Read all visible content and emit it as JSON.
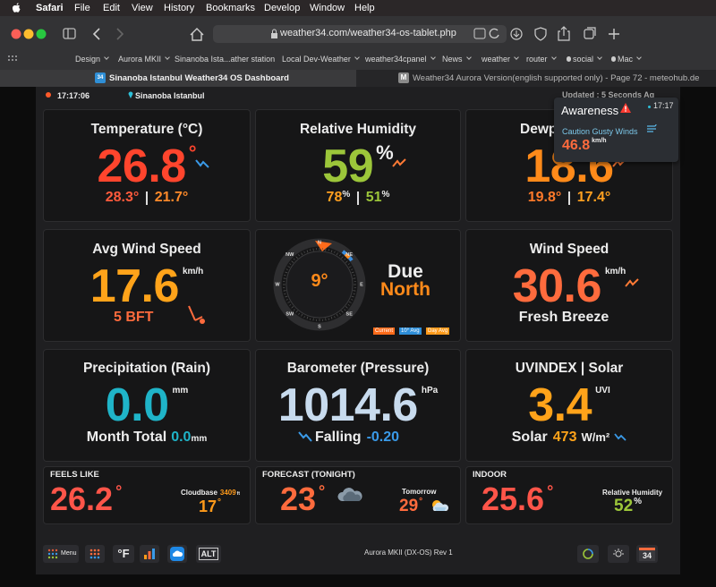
{
  "menu_bar": {
    "app": "Safari",
    "items": [
      "File",
      "Edit",
      "View",
      "History",
      "Bookmarks",
      "Develop",
      "Window",
      "Help"
    ]
  },
  "browser": {
    "url": "weather34.com/weather34-os-tablet.php",
    "bookmarks": [
      "Design",
      "Aurora MKII",
      "Sinanoba Ista...ather station",
      "Local Dev-Weather",
      "weather34cpanel",
      "News",
      "weather",
      "router",
      "social",
      "Mac"
    ],
    "tabs": [
      {
        "icon": "34",
        "title": "Sinanoba Istanbul Weather34 OS Dashboard"
      },
      {
        "icon": "M",
        "title": "Weather34 Aurora Version(english supported only) - Page 72 - meteohub.de"
      }
    ]
  },
  "header": {
    "time": "17:17:06",
    "location": "Sinanoba Istanbul",
    "updated": "Updated : 5 Seconds Ag"
  },
  "alert": {
    "title": "Awareness",
    "time": "17:17",
    "message": "Caution Gusty Winds",
    "value": "46.8",
    "unit": "km/h"
  },
  "temperature": {
    "title": "Temperature (°C)",
    "value": "26.8",
    "unit": "°",
    "high": "28.3°",
    "low": "21.7°"
  },
  "humidity": {
    "title": "Relative Humidity",
    "value": "59",
    "unit": "%",
    "high": "78",
    "high_unit": "%",
    "low": "51",
    "low_unit": "%"
  },
  "dewpoint": {
    "title": "Dewpoint",
    "value": "18.6",
    "high": "19.8°",
    "low": "17.4°"
  },
  "avg_wind": {
    "title": "Avg Wind Speed",
    "value": "17.6",
    "unit": "km/h",
    "beaufort": "5 BFT"
  },
  "compass": {
    "points": [
      "N",
      "NE",
      "E",
      "SE",
      "S",
      "SW",
      "W",
      "NW"
    ],
    "degrees": "9°",
    "direction_1": "Due",
    "direction_2": "North",
    "legend": [
      "Current",
      "10° Avg",
      "Day Avg"
    ]
  },
  "wind_speed": {
    "title": "Wind Speed",
    "value": "30.6",
    "unit": "km/h",
    "description": "Fresh Breeze"
  },
  "rain": {
    "title": "Precipitation (Rain)",
    "value": "0.0",
    "unit": "mm",
    "total_label": "Month Total",
    "total": "0.0",
    "total_unit": "mm"
  },
  "barometer": {
    "title": "Barometer (Pressure)",
    "value": "1014.6",
    "unit": "hPa",
    "trend": "Falling",
    "change": "-0.20"
  },
  "uv": {
    "title": "UVINDEX | Solar",
    "value": "3.4",
    "unit": "UVI",
    "solar_label": "Solar",
    "solar": "473",
    "solar_unit": "W/m²"
  },
  "feels_like": {
    "title": "FEELS LIKE",
    "value": "26.2",
    "unit": "°",
    "cloudbase_label": "Cloudbase",
    "cloudbase": "3409",
    "cloudbase_unit": "ft",
    "cloudbase_temp": "17",
    "cloudbase_temp_unit": "°"
  },
  "forecast": {
    "title": "FORECAST (TONIGHT)",
    "value": "23",
    "unit": "°",
    "tomorrow_label": "Tomorrow",
    "tomorrow": "29",
    "tomorrow_unit": "°"
  },
  "indoor": {
    "title": "INDOOR",
    "value": "25.6",
    "unit": "°",
    "humidity_label": "Relative Humidity",
    "humidity": "52",
    "humidity_unit": "%"
  },
  "footer": {
    "menu": "Menu",
    "units": "°F",
    "alt": "ALT",
    "version": "Aurora MKII (DX-OS) Rev 1",
    "logo": "34"
  }
}
